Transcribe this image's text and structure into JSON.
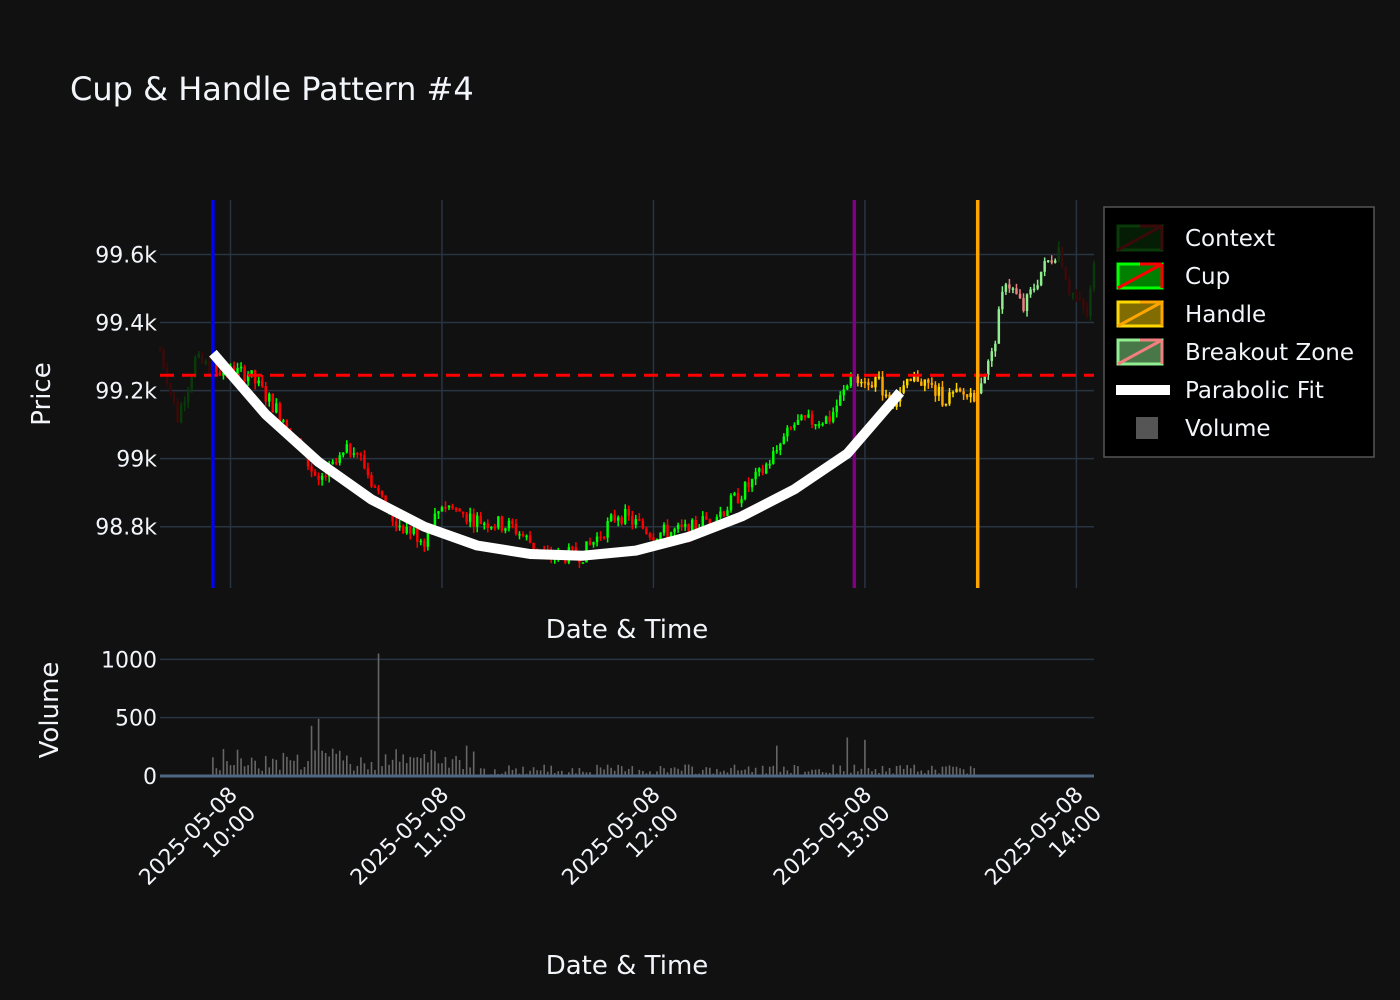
{
  "chart_data": {
    "type": "candlestick",
    "title": "Cup & Handle Pattern #4",
    "colors": {
      "background": "#111111",
      "grid": "#283442",
      "context_up": "#0a3a0a",
      "context_down": "#3a0a0a",
      "cup_up": "#00ff00",
      "cup_down": "#ff0000",
      "handle_up": "#ffd700",
      "handle_down": "#ffa500",
      "breakout_up": "#90ee90",
      "breakout_down": "#f08080",
      "parabola": "#ffffff",
      "volume": "#666666",
      "cup_start_line": "#0000ff",
      "handle_start_line": "#800080",
      "breakout_line": "#ffa500",
      "resistance_line": "#ff0000"
    },
    "price_panel": {
      "ylabel": "Price",
      "xlabel": "Date & Time",
      "ylim": [
        98620,
        99760
      ],
      "yticks": [
        98800,
        99000,
        99200,
        99400,
        99600
      ],
      "ytick_labels": [
        "98.8k",
        "99k",
        "99.2k",
        "99.4k",
        "99.6k"
      ],
      "resistance": 99245
    },
    "volume_panel": {
      "ylabel": "Volume",
      "xlabel": "Date & Time",
      "ylim": [
        0,
        1080
      ],
      "yticks": [
        0,
        500,
        1000
      ],
      "ytick_labels": [
        "0",
        "500",
        "1000"
      ]
    },
    "x_range": [
      "2025-05-08 09:40",
      "2025-05-08 14:05"
    ],
    "xticks": [
      {
        "value": "2025-05-08 10:00",
        "label_date": "2025-05-08",
        "label_time": "10:00"
      },
      {
        "value": "2025-05-08 11:00",
        "label_date": "2025-05-08",
        "label_time": "11:00"
      },
      {
        "value": "2025-05-08 12:00",
        "label_date": "2025-05-08",
        "label_time": "12:00"
      },
      {
        "value": "2025-05-08 13:00",
        "label_date": "2025-05-08",
        "label_time": "13:00"
      },
      {
        "value": "2025-05-08 14:00",
        "label_date": "2025-05-08",
        "label_time": "14:00"
      }
    ],
    "markers": {
      "cup_start": "2025-05-08 09:55",
      "handle_start": "2025-05-08 12:57",
      "breakout": "2025-05-08 13:32"
    },
    "parabola": [
      {
        "t": "2025-05-08 09:55",
        "y": 99310
      },
      {
        "t": "2025-05-08 10:10",
        "y": 99130
      },
      {
        "t": "2025-05-08 10:25",
        "y": 98990
      },
      {
        "t": "2025-05-08 10:40",
        "y": 98880
      },
      {
        "t": "2025-05-08 10:55",
        "y": 98800
      },
      {
        "t": "2025-05-08 11:10",
        "y": 98745
      },
      {
        "t": "2025-05-08 11:25",
        "y": 98720
      },
      {
        "t": "2025-05-08 11:40",
        "y": 98715
      },
      {
        "t": "2025-05-08 11:55",
        "y": 98730
      },
      {
        "t": "2025-05-08 12:10",
        "y": 98770
      },
      {
        "t": "2025-05-08 12:25",
        "y": 98830
      },
      {
        "t": "2025-05-08 12:40",
        "y": 98910
      },
      {
        "t": "2025-05-08 12:55",
        "y": 99015
      },
      {
        "t": "2025-05-08 13:10",
        "y": 99195
      }
    ],
    "price_anchors": [
      {
        "t": "2025-05-08 09:40",
        "y": 99320,
        "phase": "context"
      },
      {
        "t": "2025-05-08 09:45",
        "y": 99120,
        "phase": "context"
      },
      {
        "t": "2025-05-08 09:50",
        "y": 99290,
        "phase": "context"
      },
      {
        "t": "2025-05-08 09:55",
        "y": 99260,
        "phase": "cup"
      },
      {
        "t": "2025-05-08 10:05",
        "y": 99250,
        "phase": "cup"
      },
      {
        "t": "2025-05-08 10:15",
        "y": 99120,
        "phase": "cup"
      },
      {
        "t": "2025-05-08 10:25",
        "y": 98930,
        "phase": "cup"
      },
      {
        "t": "2025-05-08 10:35",
        "y": 99040,
        "phase": "cup"
      },
      {
        "t": "2025-05-08 10:45",
        "y": 98830,
        "phase": "cup"
      },
      {
        "t": "2025-05-08 10:55",
        "y": 98760,
        "phase": "cup"
      },
      {
        "t": "2025-05-08 11:00",
        "y": 98870,
        "phase": "cup"
      },
      {
        "t": "2025-05-08 11:10",
        "y": 98820,
        "phase": "cup"
      },
      {
        "t": "2025-05-08 11:20",
        "y": 98800,
        "phase": "cup"
      },
      {
        "t": "2025-05-08 11:30",
        "y": 98710,
        "phase": "cup"
      },
      {
        "t": "2025-05-08 11:40",
        "y": 98720,
        "phase": "cup"
      },
      {
        "t": "2025-05-08 11:50",
        "y": 98840,
        "phase": "cup"
      },
      {
        "t": "2025-05-08 12:00",
        "y": 98780,
        "phase": "cup"
      },
      {
        "t": "2025-05-08 12:10",
        "y": 98790,
        "phase": "cup"
      },
      {
        "t": "2025-05-08 12:20",
        "y": 98850,
        "phase": "cup"
      },
      {
        "t": "2025-05-08 12:30",
        "y": 98950,
        "phase": "cup"
      },
      {
        "t": "2025-05-08 12:40",
        "y": 99100,
        "phase": "cup"
      },
      {
        "t": "2025-05-08 12:50",
        "y": 99120,
        "phase": "cup"
      },
      {
        "t": "2025-05-08 12:57",
        "y": 99250,
        "phase": "handle"
      },
      {
        "t": "2025-05-08 13:03",
        "y": 99230,
        "phase": "handle"
      },
      {
        "t": "2025-05-08 13:08",
        "y": 99170,
        "phase": "handle"
      },
      {
        "t": "2025-05-08 13:15",
        "y": 99240,
        "phase": "handle"
      },
      {
        "t": "2025-05-08 13:22",
        "y": 99180,
        "phase": "handle"
      },
      {
        "t": "2025-05-08 13:31",
        "y": 99190,
        "phase": "handle"
      },
      {
        "t": "2025-05-08 13:36",
        "y": 99300,
        "phase": "breakout"
      },
      {
        "t": "2025-05-08 13:40",
        "y": 99530,
        "phase": "breakout"
      },
      {
        "t": "2025-05-08 13:45",
        "y": 99440,
        "phase": "breakout"
      },
      {
        "t": "2025-05-08 13:50",
        "y": 99550,
        "phase": "breakout"
      },
      {
        "t": "2025-05-08 13:55",
        "y": 99620,
        "phase": "breakout"
      },
      {
        "t": "2025-05-08 13:58",
        "y": 99500,
        "phase": "context"
      },
      {
        "t": "2025-05-08 14:03",
        "y": 99420,
        "phase": "context"
      },
      {
        "t": "2025-05-08 14:05",
        "y": 99560,
        "phase": "context"
      }
    ],
    "volume_spikes": [
      {
        "t": "2025-05-08 10:25",
        "v": 490
      },
      {
        "t": "2025-05-08 10:42",
        "v": 1050
      },
      {
        "t": "2025-05-08 10:23",
        "v": 430
      },
      {
        "t": "2025-05-08 11:07",
        "v": 260
      },
      {
        "t": "2025-05-08 12:35",
        "v": 260
      },
      {
        "t": "2025-05-08 12:55",
        "v": 330
      },
      {
        "t": "2025-05-08 13:00",
        "v": 310
      }
    ]
  },
  "legend": [
    {
      "label": "Context",
      "kind": "candle",
      "up": "#0a3a0a",
      "down": "#3a0a0a"
    },
    {
      "label": "Cup",
      "kind": "candle",
      "up": "#00ff00",
      "down": "#ff0000"
    },
    {
      "label": "Handle",
      "kind": "candle",
      "up": "#ffd700",
      "down": "#ffa500"
    },
    {
      "label": "Breakout Zone",
      "kind": "candle",
      "up": "#90ee90",
      "down": "#f08080"
    },
    {
      "label": "Parabolic Fit",
      "kind": "line",
      "color": "#ffffff"
    },
    {
      "label": "Volume",
      "kind": "square",
      "color": "#555555"
    }
  ]
}
